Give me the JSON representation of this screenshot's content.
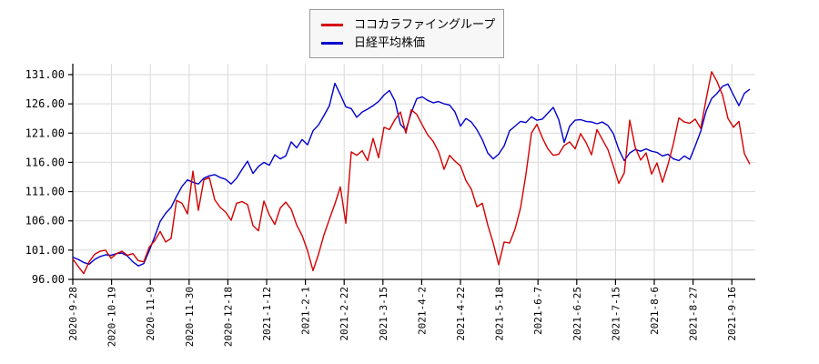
{
  "chart_data": {
    "type": "line",
    "title": "",
    "xlabel": "",
    "ylabel": "",
    "grid": true,
    "legend_position": "top-center",
    "background_color": "#ffffff",
    "grid_color": "#d9d9d9",
    "axis_color": "#000000",
    "tick_label_color": "#000000",
    "ylim": [
      96,
      133
    ],
    "y_ticks": [
      96,
      101,
      106,
      111,
      116,
      121,
      126,
      131
    ],
    "y_tick_labels": [
      "96.00",
      "101.00",
      "106.00",
      "111.00",
      "116.00",
      "121.00",
      "126.00",
      "131.00"
    ],
    "x_tick_labels": [
      "2020-9-28",
      "2020-10-19",
      "2020-11-9",
      "2020-11-30",
      "2020-12-18",
      "2021-1-12",
      "2021-2-1",
      "2021-2-22",
      "2021-3-15",
      "2021-4-2",
      "2021-4-22",
      "2021-5-18",
      "2021-6-7",
      "2021-6-25",
      "2021-7-15",
      "2021-8-6",
      "2021-8-27",
      "2021-9-16"
    ],
    "x_unit": "trading days, points evenly spaced from 2020-9-28 to late 2021-9",
    "normalized_base": 100,
    "series": [
      {
        "name": "ココカラファイングループ",
        "color": "#d40000",
        "values": [
          99.5,
          98.2,
          97.0,
          99.0,
          100.3,
          100.8,
          101.0,
          99.6,
          100.4,
          100.8,
          100.1,
          100.4,
          99.2,
          99.0,
          101.5,
          102.6,
          104.2,
          102.4,
          103.0,
          109.5,
          109.0,
          107.2,
          114.5,
          107.8,
          113.0,
          113.4,
          109.6,
          108.3,
          107.5,
          106.1,
          109.0,
          109.3,
          108.8,
          105.2,
          104.3,
          109.4,
          107.0,
          105.4,
          108.2,
          109.2,
          108.0,
          105.3,
          103.5,
          100.9,
          97.5,
          100.3,
          103.6,
          106.3,
          108.9,
          111.8,
          105.6,
          117.8,
          117.2,
          118.0,
          116.3,
          120.1,
          116.8,
          122.0,
          121.6,
          123.3,
          124.6,
          121.0,
          125.0,
          124.2,
          122.4,
          120.7,
          119.6,
          117.8,
          114.8,
          117.2,
          116.2,
          115.4,
          112.9,
          111.4,
          108.4,
          109.0,
          105.3,
          102.2,
          98.5,
          102.4,
          102.2,
          104.6,
          108.2,
          114.0,
          121.0,
          122.5,
          120.2,
          118.3,
          117.2,
          117.4,
          118.9,
          119.5,
          118.3,
          120.9,
          119.4,
          117.3,
          121.6,
          119.9,
          118.2,
          115.4,
          112.4,
          114.2,
          123.2,
          118.6,
          116.4,
          117.6,
          114.0,
          115.9,
          112.6,
          115.6,
          119.2,
          123.6,
          122.9,
          122.7,
          123.4,
          121.8,
          126.8,
          131.5,
          129.8,
          127.5,
          123.5,
          122.0,
          123.0,
          117.5,
          115.7
        ]
      },
      {
        "name": "日経平均株価",
        "color": "#0000cc",
        "values": [
          99.8,
          99.4,
          98.9,
          98.6,
          99.4,
          99.9,
          100.2,
          100.1,
          100.4,
          100.5,
          100.0,
          99.0,
          98.3,
          98.7,
          100.9,
          103.3,
          105.9,
          107.3,
          108.3,
          110.2,
          111.9,
          113.0,
          112.6,
          112.3,
          113.3,
          113.7,
          113.9,
          113.4,
          113.1,
          112.3,
          113.3,
          114.8,
          116.2,
          114.1,
          115.3,
          116.0,
          115.5,
          117.3,
          116.6,
          117.1,
          119.5,
          118.5,
          119.9,
          119.0,
          121.4,
          122.4,
          124.0,
          125.7,
          129.5,
          127.6,
          125.5,
          125.2,
          123.7,
          124.6,
          125.1,
          125.7,
          126.4,
          127.5,
          128.3,
          126.5,
          122.5,
          121.5,
          124.5,
          126.9,
          127.2,
          126.6,
          126.2,
          126.4,
          126.0,
          125.8,
          124.6,
          122.2,
          123.5,
          122.9,
          121.6,
          119.9,
          117.6,
          116.6,
          117.4,
          118.8,
          121.4,
          122.2,
          123.0,
          122.8,
          123.8,
          123.2,
          123.4,
          124.4,
          125.4,
          123.3,
          119.4,
          122.2,
          123.2,
          123.3,
          123.0,
          122.9,
          122.6,
          122.9,
          122.3,
          120.9,
          118.2,
          116.3,
          117.6,
          118.2,
          117.9,
          118.3,
          117.9,
          117.7,
          117.1,
          117.4,
          116.6,
          116.3,
          117.1,
          116.5,
          118.8,
          121.3,
          124.8,
          126.9,
          127.8,
          129.0,
          129.4,
          127.5,
          125.7,
          127.8,
          128.5
        ]
      }
    ]
  }
}
